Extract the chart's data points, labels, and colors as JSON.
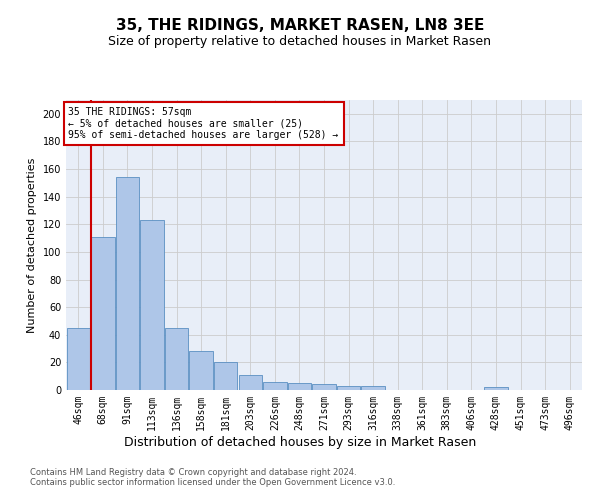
{
  "title": "35, THE RIDINGS, MARKET RASEN, LN8 3EE",
  "subtitle": "Size of property relative to detached houses in Market Rasen",
  "xlabel": "Distribution of detached houses by size in Market Rasen",
  "ylabel": "Number of detached properties",
  "categories": [
    "46sqm",
    "68sqm",
    "91sqm",
    "113sqm",
    "136sqm",
    "158sqm",
    "181sqm",
    "203sqm",
    "226sqm",
    "248sqm",
    "271sqm",
    "293sqm",
    "316sqm",
    "338sqm",
    "361sqm",
    "383sqm",
    "406sqm",
    "428sqm",
    "451sqm",
    "473sqm",
    "496sqm"
  ],
  "values": [
    45,
    111,
    154,
    123,
    45,
    28,
    20,
    11,
    6,
    5,
    4,
    3,
    3,
    0,
    0,
    0,
    0,
    2,
    0,
    0,
    0
  ],
  "bar_color": "#aec6e8",
  "bar_edge_color": "#5a8fc2",
  "grid_color": "#cccccc",
  "ax_bg_color": "#e8eef8",
  "background_color": "#ffffff",
  "annotation_text": "35 THE RIDINGS: 57sqm\n← 5% of detached houses are smaller (25)\n95% of semi-detached houses are larger (528) →",
  "annotation_box_color": "#ffffff",
  "annotation_box_edge_color": "#cc0000",
  "vline_color": "#cc0000",
  "ylim": [
    0,
    210
  ],
  "yticks": [
    0,
    20,
    40,
    60,
    80,
    100,
    120,
    140,
    160,
    180,
    200
  ],
  "footer_line1": "Contains HM Land Registry data © Crown copyright and database right 2024.",
  "footer_line2": "Contains public sector information licensed under the Open Government Licence v3.0.",
  "title_fontsize": 11,
  "subtitle_fontsize": 9,
  "xlabel_fontsize": 9,
  "ylabel_fontsize": 8,
  "tick_fontsize": 7,
  "annotation_fontsize": 7,
  "footer_fontsize": 6
}
